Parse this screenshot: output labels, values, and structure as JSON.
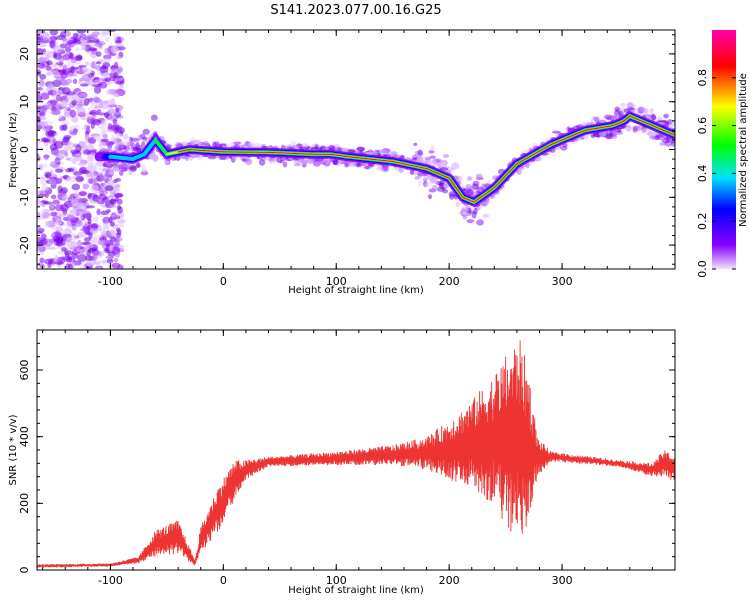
{
  "title": "S141.2023.077.00.16.G25",
  "chart_data": [
    {
      "type": "heatmap",
      "name": "spectrogram",
      "xlabel": "Height of straight line (km)",
      "ylabel": "Frequency (Hz)",
      "xlim": [
        -165,
        400
      ],
      "ylim": [
        -25,
        25
      ],
      "xticks": [
        -100,
        0,
        100,
        200,
        300
      ],
      "xtick_labels": [
        "-100",
        "0",
        "100",
        "200",
        "300"
      ],
      "yticks": [
        -20,
        -10,
        0,
        10,
        20
      ],
      "ytick_labels": [
        "-20",
        "-10",
        "0",
        "10",
        "20"
      ],
      "ridge": {
        "x": [
          -100,
          -80,
          -70,
          -60,
          -50,
          -30,
          0,
          40,
          80,
          95,
          110,
          130,
          150,
          180,
          200,
          212,
          222,
          240,
          260,
          290,
          320,
          345,
          355,
          360,
          380,
          400
        ],
        "y": [
          -1.5,
          -2,
          -1,
          2,
          -1,
          0,
          -0.5,
          -0.6,
          -1,
          -1,
          -1.5,
          -2,
          -2.5,
          -4,
          -6,
          -10,
          -11,
          -8,
          -3,
          1,
          4,
          5,
          6,
          7,
          5,
          3
        ]
      },
      "colorbar": {
        "label": "Normalized spectral amplitude",
        "range": [
          0,
          1
        ],
        "ticks": [
          0.0,
          0.2,
          0.4,
          0.6,
          0.8
        ],
        "tick_labels": [
          "0.0",
          "0.2",
          "0.4",
          "0.6",
          "0.8"
        ],
        "colors": [
          "#f4e0ff",
          "#8800ff",
          "#0000ff",
          "#00e0ff",
          "#00ff00",
          "#ffff00",
          "#ff0000",
          "#ff00aa"
        ]
      }
    },
    {
      "type": "line",
      "name": "snr",
      "xlabel": "Height of straight line (km)",
      "ylabel": "SNR (10 * v/v)",
      "xlim": [
        -165,
        400
      ],
      "ylim": [
        0,
        720
      ],
      "xticks": [
        -100,
        0,
        100,
        200,
        300
      ],
      "xtick_labels": [
        "-100",
        "0",
        "100",
        "200",
        "300"
      ],
      "yticks": [
        0,
        200,
        400,
        600
      ],
      "ytick_labels": [
        "0",
        "200",
        "400",
        "600"
      ],
      "color": "#ee3333",
      "envelope": {
        "x": [
          -165,
          -100,
          -75,
          -60,
          -40,
          -25,
          -20,
          -5,
          10,
          20,
          40,
          100,
          150,
          180,
          200,
          220,
          240,
          255,
          262,
          270,
          278,
          290,
          320,
          350,
          380,
          390,
          400
        ],
        "mean": [
          12,
          15,
          30,
          80,
          100,
          20,
          90,
          180,
          270,
          300,
          325,
          335,
          345,
          350,
          360,
          380,
          390,
          390,
          400,
          360,
          340,
          340,
          330,
          320,
          300,
          320,
          305
        ],
        "spread": [
          5,
          5,
          10,
          40,
          50,
          10,
          40,
          70,
          60,
          30,
          15,
          20,
          30,
          50,
          90,
          130,
          200,
          280,
          300,
          250,
          60,
          15,
          12,
          10,
          20,
          40,
          40
        ]
      }
    }
  ]
}
